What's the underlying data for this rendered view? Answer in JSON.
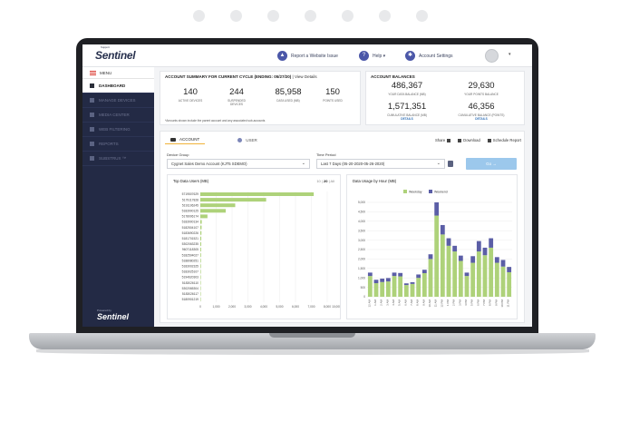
{
  "topbar": {
    "logo_small": "Support",
    "logo": "Sentinel",
    "report_issue": "Report a Website Issue",
    "help": "Help ▾",
    "account_settings": "Account Settings",
    "caret": "▾"
  },
  "sidebar": {
    "menu_label": "MENU",
    "items": [
      {
        "label": "DASHBOARD"
      },
      {
        "label": "MANAGE DEVICES"
      },
      {
        "label": "MEDIA CENTER"
      },
      {
        "label": "WEB FILTERING"
      },
      {
        "label": "REPORTS"
      },
      {
        "label": "SUBSTRUX ™"
      }
    ],
    "powered_by": "Powered by",
    "footer_logo": "Sentinel"
  },
  "summary": {
    "title": "ACCOUNT SUMMARY FOR CURRENT CYCLE (ENDING: 05/27/20)",
    "view_details": "| View Details",
    "stats": [
      {
        "value": "140",
        "label": "ACTIVE DEVICES"
      },
      {
        "value": "244",
        "label": "SUSPENDED DEVICES"
      },
      {
        "value": "85,958",
        "label": "DATA USED (MB)"
      },
      {
        "value": "150",
        "label": "POINTS USED"
      }
    ],
    "note": "*Amounts shown include the parent account and any associated sub-accounts"
  },
  "balances": {
    "title": "ACCOUNT BALANCES",
    "items": [
      {
        "value": "486,367",
        "label": "YOUR DATA BALANCE (MB)",
        "details": ""
      },
      {
        "value": "29,630",
        "label": "YOUR POINTS BALANCE",
        "details": ""
      },
      {
        "value": "1,571,351",
        "label": "CUMULATIVE BALANCE (MB)",
        "details": "DETAILS"
      },
      {
        "value": "46,356",
        "label": "CUMULATIVE BALANCE (POINTS)",
        "details": "DETAILS"
      }
    ]
  },
  "tabs": {
    "account": "ACCOUNT",
    "user": "USER"
  },
  "actions": {
    "share": "Share",
    "download": "Download",
    "schedule": "Schedule Report"
  },
  "filters": {
    "device_group_label": "Device Group",
    "device_group_value": "Cygnet Sales Demo Account (KJT5 SDEMO)",
    "time_period_label": "Time Period",
    "time_period_value": "Last 7 Days (05-20-2020-05-26-2020)",
    "go": "Go →",
    "caret": "⌄"
  },
  "colors": {
    "weekday": "#aed27a",
    "weekend": "#5b5ea6",
    "accent": "#f0b23a",
    "sidebar": "#232a45"
  },
  "chart_data": [
    {
      "type": "bar",
      "title": "Top Data Users (MB)",
      "toggle": [
        "10",
        "20",
        "All"
      ],
      "selected_toggle": "20",
      "orientation": "horizontal",
      "categories": [
        "5719507629",
        "5179117828",
        "5191106245",
        "5183900125",
        "5178006174",
        "5183900134",
        "5182504107",
        "5183690226",
        "5181701521",
        "5302063235",
        "9607118305",
        "5182504027",
        "5188080251",
        "5183002325",
        "5183025107",
        "5194620303",
        "5183026110",
        "5302065304",
        "5183026117",
        "5180901219"
      ],
      "values": [
        7150,
        4150,
        2200,
        1600,
        450,
        90,
        80,
        70,
        60,
        55,
        50,
        45,
        40,
        38,
        35,
        32,
        30,
        28,
        25,
        20
      ],
      "xticks": [
        "0",
        "1,000",
        "2,000",
        "3,000",
        "4,000",
        "5,000",
        "6,000",
        "7,000",
        "8,000",
        "10,000"
      ],
      "xlim": [
        0,
        8000
      ]
    },
    {
      "type": "bar",
      "title": "Data Usage by Hour (MB)",
      "stacked": true,
      "legend": [
        "Weekday",
        "Weekend"
      ],
      "legend_position": "top",
      "categories": [
        "12 AM",
        "1 AM",
        "2 AM",
        "3 AM",
        "4 AM",
        "5 AM",
        "6 AM",
        "7 AM",
        "8 AM",
        "9 AM",
        "10 AM",
        "11 AM",
        "12 PM",
        "1 PM",
        "2 PM",
        "3 PM",
        "4 PM",
        "5 PM",
        "6 PM",
        "7 PM",
        "8 PM",
        "9 PM",
        "10 PM",
        "11 PM"
      ],
      "series": [
        {
          "name": "Weekday",
          "values": [
            1100,
            720,
            780,
            810,
            1100,
            1080,
            620,
            680,
            1000,
            1250,
            2000,
            4300,
            3300,
            2700,
            2400,
            1900,
            1100,
            1800,
            2400,
            2200,
            2600,
            1800,
            1600,
            1300
          ]
        },
        {
          "name": "Weekend",
          "values": [
            180,
            180,
            180,
            180,
            180,
            180,
            90,
            90,
            180,
            180,
            250,
            700,
            500,
            400,
            300,
            280,
            180,
            350,
            550,
            400,
            500,
            300,
            350,
            280
          ]
        }
      ],
      "yticks": [
        "5,000",
        "4,500",
        "4,000",
        "3,500",
        "3,000",
        "2,500",
        "2,000",
        "1,500",
        "1,000",
        "500",
        "0"
      ],
      "ylim": [
        0,
        5000
      ]
    }
  ]
}
